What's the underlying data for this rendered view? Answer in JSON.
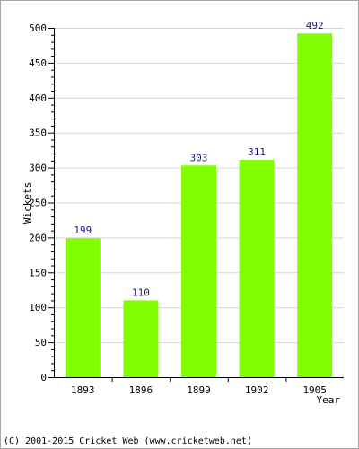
{
  "chart_data": {
    "type": "bar",
    "categories": [
      "1893",
      "1896",
      "1899",
      "1902",
      "1905"
    ],
    "values": [
      199,
      110,
      303,
      311,
      492
    ],
    "xlabel": "Year",
    "ylabel": "Wickets",
    "ylim": [
      0,
      500
    ],
    "yticks": [
      0,
      50,
      100,
      150,
      200,
      250,
      300,
      350,
      400,
      450,
      500
    ],
    "grid": true,
    "bar_color": "#80ff00",
    "label_color": "#1a1a80"
  },
  "footer": {
    "copyright": "(C) 2001-2015 Cricket Web (www.cricketweb.net)"
  }
}
